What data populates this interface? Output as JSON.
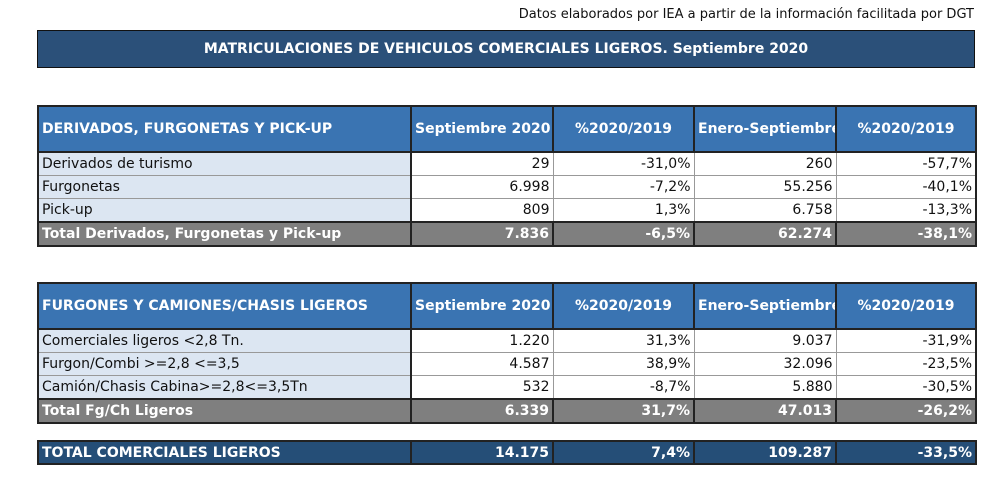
{
  "source_note": "Datos elaborados por IEA a partir de la información facilitada por DGT",
  "title": "MATRICULACIONES DE VEHICULOS COMERCIALES LIGEROS. Septiembre 2020",
  "tables": [
    {
      "headers": [
        "DERIVADOS, FURGONETAS Y PICK-UP",
        "Septiembre 2020",
        "%2020/2019",
        "Enero-Septiembre 2020",
        "%2020/2019"
      ],
      "rows": [
        [
          "Derivados de turismo",
          "29",
          "-31,0%",
          "260",
          "-57,7%"
        ],
        [
          "Furgonetas",
          "6.998",
          "-7,2%",
          "55.256",
          "-40,1%"
        ],
        [
          "Pick-up",
          "809",
          "1,3%",
          "6.758",
          "-13,3%"
        ]
      ],
      "total": [
        "Total Derivados, Furgonetas y Pick-up",
        "7.836",
        "-6,5%",
        "62.274",
        "-38,1%"
      ]
    },
    {
      "headers": [
        "FURGONES Y CAMIONES/CHASIS LIGEROS",
        "Septiembre 2020",
        "%2020/2019",
        "Enero-Septiembre 2020",
        "%2020/2019"
      ],
      "rows": [
        [
          "Comerciales ligeros <2,8 Tn.",
          "1.220",
          "31,3%",
          "9.037",
          "-31,9%"
        ],
        [
          "Furgon/Combi >=2,8 <=3,5",
          "4.587",
          "38,9%",
          "32.096",
          "-23,5%"
        ],
        [
          "Camión/Chasis Cabina>=2,8<=3,5Tn",
          "532",
          "-8,7%",
          "5.880",
          "-30,5%"
        ]
      ],
      "total": [
        "Total Fg/Ch Ligeros",
        "6.339",
        "31,7%",
        "47.013",
        "-26,2%"
      ]
    }
  ],
  "grand_total": [
    "TOTAL COMERCIALES LIGEROS",
    "14.175",
    "7,4%",
    "109.287",
    "-33,5%"
  ]
}
